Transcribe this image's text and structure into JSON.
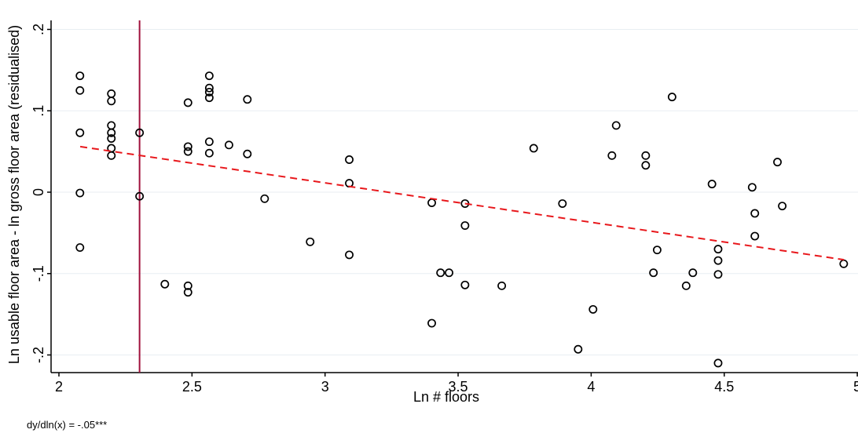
{
  "chart_data": {
    "type": "scatter",
    "title": "",
    "xlabel": "Ln # floors",
    "ylabel": "Ln usable floor area - ln gross floor area (residualised)",
    "note": "dy/dln(x) = -.05***",
    "xlim": [
      2.0,
      4.97
    ],
    "ylim": [
      -0.22,
      0.21
    ],
    "x_ticks": [
      2,
      2.5,
      3,
      3.5,
      4,
      4.5,
      5
    ],
    "x_tick_labels": [
      "2",
      "2.5",
      "3",
      "3.5",
      "4",
      "4.5",
      "5"
    ],
    "y_ticks": [
      0.2,
      0.1,
      0,
      -0.1,
      -0.2
    ],
    "y_tick_labels": [
      ".2",
      ".1",
      "0",
      "-.1",
      "-.2"
    ],
    "grid": "horizontal",
    "vertical_line": {
      "x": 2.303,
      "color": "#a0103c"
    },
    "fit_line": {
      "x": [
        2.08,
        4.95
      ],
      "y": [
        0.056,
        -0.083
      ],
      "color": "#e8181c",
      "style": "dashed"
    },
    "points": [
      {
        "x": 2.079,
        "y": 0.143
      },
      {
        "x": 2.079,
        "y": 0.125
      },
      {
        "x": 2.079,
        "y": 0.073
      },
      {
        "x": 2.079,
        "y": -0.001
      },
      {
        "x": 2.079,
        "y": -0.068
      },
      {
        "x": 2.197,
        "y": 0.121
      },
      {
        "x": 2.197,
        "y": 0.112
      },
      {
        "x": 2.197,
        "y": 0.082
      },
      {
        "x": 2.197,
        "y": 0.073
      },
      {
        "x": 2.197,
        "y": 0.066
      },
      {
        "x": 2.197,
        "y": 0.054
      },
      {
        "x": 2.197,
        "y": 0.045
      },
      {
        "x": 2.303,
        "y": 0.073
      },
      {
        "x": 2.303,
        "y": -0.005
      },
      {
        "x": 2.398,
        "y": -0.113
      },
      {
        "x": 2.485,
        "y": 0.11
      },
      {
        "x": 2.485,
        "y": 0.056
      },
      {
        "x": 2.485,
        "y": 0.05
      },
      {
        "x": 2.485,
        "y": -0.115
      },
      {
        "x": 2.485,
        "y": -0.123
      },
      {
        "x": 2.565,
        "y": 0.143
      },
      {
        "x": 2.565,
        "y": 0.128
      },
      {
        "x": 2.565,
        "y": 0.123
      },
      {
        "x": 2.565,
        "y": 0.116
      },
      {
        "x": 2.565,
        "y": 0.062
      },
      {
        "x": 2.565,
        "y": 0.048
      },
      {
        "x": 2.639,
        "y": 0.058
      },
      {
        "x": 2.708,
        "y": 0.114
      },
      {
        "x": 2.708,
        "y": 0.047
      },
      {
        "x": 2.773,
        "y": -0.008
      },
      {
        "x": 2.944,
        "y": -0.061
      },
      {
        "x": 3.091,
        "y": 0.04
      },
      {
        "x": 3.091,
        "y": 0.011
      },
      {
        "x": 3.091,
        "y": -0.077
      },
      {
        "x": 3.401,
        "y": -0.013
      },
      {
        "x": 3.401,
        "y": -0.161
      },
      {
        "x": 3.434,
        "y": -0.099
      },
      {
        "x": 3.466,
        "y": -0.099
      },
      {
        "x": 3.526,
        "y": -0.014
      },
      {
        "x": 3.526,
        "y": -0.041
      },
      {
        "x": 3.526,
        "y": -0.114
      },
      {
        "x": 3.664,
        "y": -0.115
      },
      {
        "x": 3.784,
        "y": 0.054
      },
      {
        "x": 3.892,
        "y": -0.014
      },
      {
        "x": 3.951,
        "y": -0.193
      },
      {
        "x": 4.007,
        "y": -0.144
      },
      {
        "x": 4.078,
        "y": 0.045
      },
      {
        "x": 4.094,
        "y": 0.082
      },
      {
        "x": 4.205,
        "y": 0.045
      },
      {
        "x": 4.205,
        "y": 0.033
      },
      {
        "x": 4.234,
        "y": -0.099
      },
      {
        "x": 4.248,
        "y": -0.071
      },
      {
        "x": 4.304,
        "y": 0.117
      },
      {
        "x": 4.357,
        "y": -0.115
      },
      {
        "x": 4.382,
        "y": -0.099
      },
      {
        "x": 4.454,
        "y": 0.01
      },
      {
        "x": 4.477,
        "y": -0.07
      },
      {
        "x": 4.477,
        "y": -0.084
      },
      {
        "x": 4.477,
        "y": -0.101
      },
      {
        "x": 4.477,
        "y": -0.21
      },
      {
        "x": 4.605,
        "y": 0.006
      },
      {
        "x": 4.615,
        "y": -0.026
      },
      {
        "x": 4.615,
        "y": -0.054
      },
      {
        "x": 4.7,
        "y": 0.037
      },
      {
        "x": 4.718,
        "y": -0.017
      },
      {
        "x": 4.949,
        "y": -0.088
      }
    ]
  }
}
